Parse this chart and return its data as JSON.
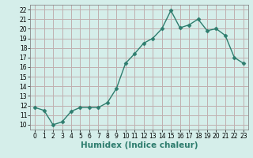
{
  "x": [
    0,
    1,
    2,
    3,
    4,
    5,
    6,
    7,
    8,
    9,
    10,
    11,
    12,
    13,
    14,
    15,
    16,
    17,
    18,
    19,
    20,
    21,
    22,
    23
  ],
  "y": [
    11.8,
    11.5,
    10.0,
    10.3,
    11.4,
    11.8,
    11.8,
    11.8,
    12.3,
    13.8,
    16.4,
    17.4,
    18.5,
    19.0,
    20.0,
    21.9,
    20.1,
    20.4,
    21.0,
    19.8,
    20.0,
    19.3,
    17.0,
    16.4
  ],
  "line_color": "#2e7d6e",
  "marker": "D",
  "marker_size": 2.5,
  "bg_color": "#d5eeea",
  "grid_color": "#c0b0b0",
  "xlabel": "Humidex (Indice chaleur)",
  "xlim": [
    -0.5,
    23.5
  ],
  "ylim": [
    9.5,
    22.5
  ],
  "yticks": [
    10,
    11,
    12,
    13,
    14,
    15,
    16,
    17,
    18,
    19,
    20,
    21,
    22
  ],
  "xticks": [
    0,
    1,
    2,
    3,
    4,
    5,
    6,
    7,
    8,
    9,
    10,
    11,
    12,
    13,
    14,
    15,
    16,
    17,
    18,
    19,
    20,
    21,
    22,
    23
  ],
  "tick_label_fontsize": 5.5,
  "xlabel_fontsize": 7.5,
  "line_width": 1.0
}
